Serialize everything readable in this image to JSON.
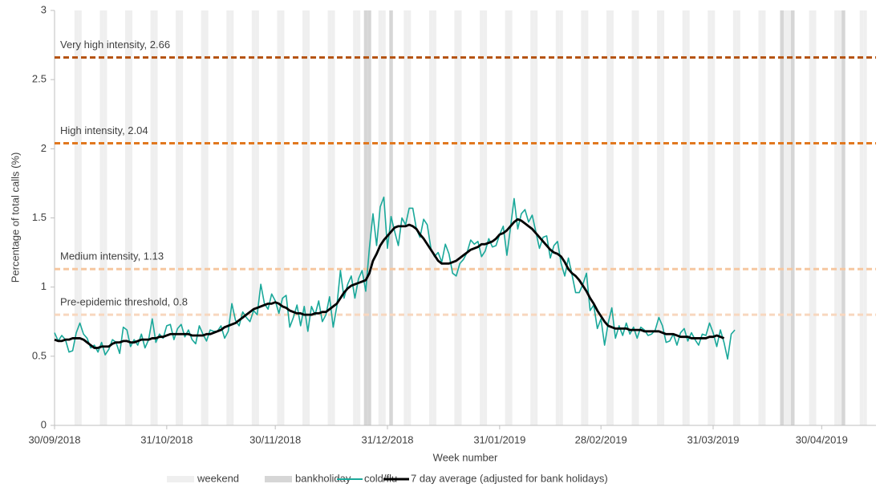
{
  "chart_data": {
    "type": "line",
    "y_label": "Percentage of total calls (%)",
    "x_label": "Week number",
    "ylim": [
      0,
      3
    ],
    "yticks": [
      0,
      0.5,
      1,
      1.5,
      2,
      2.5,
      3
    ],
    "xlim": [
      "30/09/2018",
      "15/05/2019"
    ],
    "xticks": [
      "30/09/2018",
      "31/10/2018",
      "30/11/2018",
      "31/12/2018",
      "31/01/2019",
      "28/02/2019",
      "31/03/2019",
      "30/04/2019"
    ],
    "thresholds": [
      {
        "label": "Very high intensity, 2.66",
        "value": 2.66,
        "color": "#b4510e"
      },
      {
        "label": "High intensity, 2.04",
        "value": 2.04,
        "color": "#e1781f"
      },
      {
        "label": "Medium intensity, 1.13",
        "value": 1.13,
        "color": "#f6c7a0"
      },
      {
        "label": "Pre-epidemic threshold, 0.8",
        "value": 0.8,
        "color": "#f8d7bf"
      }
    ],
    "x": [
      "30/09/2018",
      "01/10/2018",
      "02/10/2018",
      "03/10/2018",
      "04/10/2018",
      "05/10/2018",
      "06/10/2018",
      "07/10/2018",
      "08/10/2018",
      "09/10/2018",
      "10/10/2018",
      "11/10/2018",
      "12/10/2018",
      "13/10/2018",
      "14/10/2018",
      "15/10/2018",
      "16/10/2018",
      "17/10/2018",
      "18/10/2018",
      "19/10/2018",
      "20/10/2018",
      "21/10/2018",
      "22/10/2018",
      "23/10/2018",
      "24/10/2018",
      "25/10/2018",
      "26/10/2018",
      "27/10/2018",
      "28/10/2018",
      "29/10/2018",
      "30/10/2018",
      "31/10/2018",
      "01/11/2018",
      "02/11/2018",
      "03/11/2018",
      "04/11/2018",
      "05/11/2018",
      "06/11/2018",
      "07/11/2018",
      "08/11/2018",
      "09/11/2018",
      "10/11/2018",
      "11/11/2018",
      "12/11/2018",
      "13/11/2018",
      "14/11/2018",
      "15/11/2018",
      "16/11/2018",
      "17/11/2018",
      "18/11/2018",
      "19/11/2018",
      "20/11/2018",
      "21/11/2018",
      "22/11/2018",
      "23/11/2018",
      "24/11/2018",
      "25/11/2018",
      "26/11/2018",
      "27/11/2018",
      "28/11/2018",
      "29/11/2018",
      "30/11/2018",
      "01/12/2018",
      "02/12/2018",
      "03/12/2018",
      "04/12/2018",
      "05/12/2018",
      "06/12/2018",
      "07/12/2018",
      "08/12/2018",
      "09/12/2018",
      "10/12/2018",
      "11/12/2018",
      "12/12/2018",
      "13/12/2018",
      "14/12/2018",
      "15/12/2018",
      "16/12/2018",
      "17/12/2018",
      "18/12/2018",
      "19/12/2018",
      "20/12/2018",
      "21/12/2018",
      "22/12/2018",
      "23/12/2018",
      "24/12/2018",
      "25/12/2018",
      "26/12/2018",
      "27/12/2018",
      "28/12/2018",
      "29/12/2018",
      "30/12/2018",
      "31/12/2018",
      "01/01/2019",
      "02/01/2019",
      "03/01/2019",
      "04/01/2019",
      "05/01/2019",
      "06/01/2019",
      "07/01/2019",
      "08/01/2019",
      "09/01/2019",
      "10/01/2019",
      "11/01/2019",
      "12/01/2019",
      "13/01/2019",
      "14/01/2019",
      "15/01/2019",
      "16/01/2019",
      "17/01/2019",
      "18/01/2019",
      "19/01/2019",
      "20/01/2019",
      "21/01/2019",
      "22/01/2019",
      "23/01/2019",
      "24/01/2019",
      "25/01/2019",
      "26/01/2019",
      "27/01/2019",
      "28/01/2019",
      "29/01/2019",
      "30/01/2019",
      "31/01/2019",
      "01/02/2019",
      "02/02/2019",
      "03/02/2019",
      "04/02/2019",
      "05/02/2019",
      "06/02/2019",
      "07/02/2019",
      "08/02/2019",
      "09/02/2019",
      "10/02/2019",
      "11/02/2019",
      "12/02/2019",
      "13/02/2019",
      "14/02/2019",
      "15/02/2019",
      "16/02/2019",
      "17/02/2019",
      "18/02/2019",
      "19/02/2019",
      "20/02/2019",
      "21/02/2019",
      "22/02/2019",
      "23/02/2019",
      "24/02/2019",
      "25/02/2019",
      "26/02/2019",
      "27/02/2019",
      "28/02/2019",
      "01/03/2019",
      "02/03/2019",
      "03/03/2019",
      "04/03/2019",
      "05/03/2019",
      "06/03/2019",
      "07/03/2019",
      "08/03/2019",
      "09/03/2019",
      "10/03/2019",
      "11/03/2019",
      "12/03/2019",
      "13/03/2019",
      "14/03/2019",
      "15/03/2019",
      "16/03/2019",
      "17/03/2019",
      "18/03/2019",
      "19/03/2019",
      "20/03/2019",
      "21/03/2019",
      "22/03/2019",
      "23/03/2019",
      "24/03/2019",
      "25/03/2019",
      "26/03/2019",
      "27/03/2019",
      "28/03/2019",
      "29/03/2019",
      "30/03/2019",
      "31/03/2019",
      "01/04/2019",
      "02/04/2019",
      "03/04/2019",
      "04/04/2019",
      "05/04/2019",
      "06/04/2019"
    ],
    "series": [
      {
        "name": "weekend",
        "color": "#efefef",
        "x": [
          "06/10/2018",
          "07/10/2018",
          "13/10/2018",
          "14/10/2018",
          "20/10/2018",
          "21/10/2018",
          "27/10/2018",
          "28/10/2018",
          "03/11/2018",
          "04/11/2018",
          "10/11/2018",
          "11/11/2018",
          "17/11/2018",
          "18/11/2018",
          "24/11/2018",
          "25/11/2018",
          "01/12/2018",
          "02/12/2018",
          "08/12/2018",
          "09/12/2018",
          "15/12/2018",
          "16/12/2018",
          "22/12/2018",
          "23/12/2018",
          "29/12/2018",
          "30/12/2018",
          "05/01/2019",
          "06/01/2019",
          "12/01/2019",
          "13/01/2019",
          "19/01/2019",
          "20/01/2019",
          "26/01/2019",
          "27/01/2019",
          "02/02/2019",
          "03/02/2019",
          "09/02/2019",
          "10/02/2019",
          "16/02/2019",
          "17/02/2019",
          "23/02/2019",
          "24/02/2019",
          "02/03/2019",
          "03/03/2019",
          "09/03/2019",
          "10/03/2019",
          "16/03/2019",
          "17/03/2019",
          "23/03/2019",
          "24/03/2019",
          "30/03/2019",
          "31/03/2019",
          "06/04/2019",
          "07/04/2019",
          "13/04/2019",
          "14/04/2019",
          "20/04/2019",
          "21/04/2019",
          "27/04/2019",
          "28/04/2019",
          "04/05/2019",
          "05/05/2019",
          "11/05/2019",
          "12/05/2019"
        ]
      },
      {
        "name": "bankholiday",
        "color": "#d6d6d6",
        "x": [
          "25/12/2018",
          "26/12/2018",
          "01/01/2019",
          "19/04/2019",
          "22/04/2019",
          "06/05/2019"
        ]
      },
      {
        "name": "cold/flu",
        "color": "#1aa89a",
        "values": [
          0.67,
          0.61,
          0.65,
          0.62,
          0.53,
          0.54,
          0.67,
          0.74,
          0.66,
          0.63,
          0.56,
          0.58,
          0.53,
          0.6,
          0.51,
          0.55,
          0.62,
          0.6,
          0.52,
          0.71,
          0.69,
          0.57,
          0.62,
          0.58,
          0.66,
          0.56,
          0.62,
          0.77,
          0.6,
          0.66,
          0.63,
          0.72,
          0.73,
          0.62,
          0.7,
          0.73,
          0.64,
          0.69,
          0.62,
          0.59,
          0.72,
          0.66,
          0.61,
          0.69,
          0.68,
          0.68,
          0.72,
          0.63,
          0.68,
          0.88,
          0.76,
          0.72,
          0.82,
          0.78,
          0.75,
          0.83,
          0.8,
          1.02,
          0.88,
          0.84,
          0.95,
          0.9,
          0.81,
          0.92,
          0.94,
          0.71,
          0.78,
          0.87,
          0.72,
          0.86,
          0.68,
          0.86,
          0.8,
          0.9,
          0.75,
          0.8,
          0.93,
          0.71,
          0.86,
          1.12,
          0.92,
          1.02,
          1.08,
          0.92,
          1.06,
          1.12,
          0.97,
          1.28,
          1.53,
          1.3,
          1.58,
          1.65,
          1.28,
          1.51,
          1.4,
          1.3,
          1.5,
          1.45,
          1.57,
          1.57,
          1.42,
          1.36,
          1.49,
          1.45,
          1.28,
          1.22,
          1.25,
          1.18,
          1.31,
          1.24,
          1.1,
          1.08,
          1.17,
          1.2,
          1.25,
          1.34,
          1.31,
          1.33,
          1.22,
          1.26,
          1.35,
          1.29,
          1.3,
          1.38,
          1.44,
          1.23,
          1.43,
          1.64,
          1.42,
          1.53,
          1.56,
          1.47,
          1.52,
          1.4,
          1.28,
          1.36,
          1.37,
          1.21,
          1.3,
          1.33,
          1.17,
          1.08,
          1.21,
          1.09,
          0.96,
          0.96,
          1.02,
          1.1,
          0.83,
          0.87,
          0.7,
          0.77,
          0.58,
          0.74,
          0.85,
          0.63,
          0.72,
          0.65,
          0.74,
          0.66,
          0.71,
          0.63,
          0.71,
          0.69,
          0.65,
          0.66,
          0.69,
          0.78,
          0.72,
          0.6,
          0.61,
          0.66,
          0.58,
          0.67,
          0.7,
          0.61,
          0.67,
          0.62,
          0.58,
          0.66,
          0.65,
          0.74,
          0.67,
          0.57,
          0.69,
          0.6,
          0.48,
          0.66,
          0.69
        ]
      },
      {
        "name": "7 day average (adjusted for bank holidays)",
        "color": "#000000",
        "values": [
          0.62,
          0.61,
          0.61,
          0.62,
          0.62,
          0.63,
          0.63,
          0.63,
          0.62,
          0.6,
          0.58,
          0.56,
          0.56,
          0.57,
          0.57,
          0.57,
          0.59,
          0.6,
          0.6,
          0.61,
          0.61,
          0.6,
          0.6,
          0.61,
          0.62,
          0.62,
          0.62,
          0.63,
          0.63,
          0.64,
          0.64,
          0.65,
          0.66,
          0.66,
          0.66,
          0.66,
          0.66,
          0.66,
          0.65,
          0.65,
          0.65,
          0.65,
          0.66,
          0.66,
          0.67,
          0.68,
          0.69,
          0.71,
          0.72,
          0.73,
          0.74,
          0.76,
          0.78,
          0.8,
          0.82,
          0.84,
          0.85,
          0.86,
          0.87,
          0.88,
          0.88,
          0.89,
          0.88,
          0.86,
          0.85,
          0.83,
          0.82,
          0.81,
          0.81,
          0.8,
          0.8,
          0.8,
          0.81,
          0.81,
          0.82,
          0.82,
          0.84,
          0.86,
          0.88,
          0.92,
          0.96,
          0.99,
          1.01,
          1.02,
          1.03,
          1.04,
          1.05,
          1.1,
          1.19,
          1.24,
          1.3,
          1.34,
          1.37,
          1.4,
          1.43,
          1.44,
          1.44,
          1.44,
          1.45,
          1.44,
          1.42,
          1.38,
          1.35,
          1.31,
          1.27,
          1.23,
          1.19,
          1.17,
          1.17,
          1.17,
          1.18,
          1.19,
          1.21,
          1.23,
          1.25,
          1.27,
          1.28,
          1.29,
          1.31,
          1.31,
          1.32,
          1.33,
          1.35,
          1.38,
          1.39,
          1.41,
          1.44,
          1.47,
          1.49,
          1.48,
          1.46,
          1.44,
          1.42,
          1.39,
          1.36,
          1.33,
          1.3,
          1.27,
          1.25,
          1.24,
          1.22,
          1.18,
          1.13,
          1.1,
          1.08,
          1.05,
          1.01,
          0.97,
          0.92,
          0.88,
          0.83,
          0.79,
          0.75,
          0.72,
          0.71,
          0.7,
          0.7,
          0.7,
          0.7,
          0.69,
          0.69,
          0.69,
          0.69,
          0.68,
          0.68,
          0.68,
          0.68,
          0.68,
          0.67,
          0.66,
          0.66,
          0.66,
          0.65,
          0.64,
          0.64,
          0.64,
          0.63,
          0.63,
          0.63,
          0.63,
          0.63,
          0.64,
          0.64,
          0.65,
          0.64,
          0.63,
          null,
          null,
          null
        ]
      }
    ]
  }
}
